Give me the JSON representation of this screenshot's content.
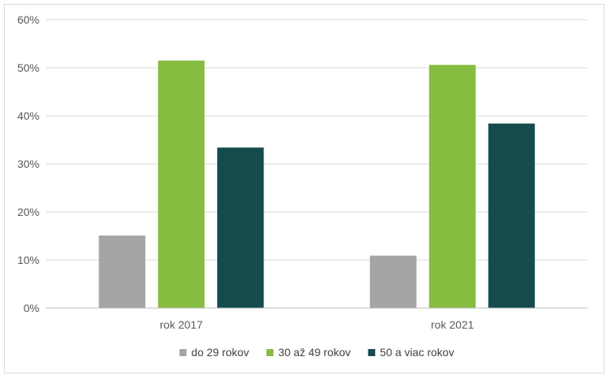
{
  "chart_data": {
    "type": "bar",
    "categories": [
      "rok 2017",
      "rok 2021"
    ],
    "series": [
      {
        "name": "do 29 rokov",
        "values": [
          15.1,
          10.9
        ],
        "color": "#a5a5a5"
      },
      {
        "name": "30 až 49 rokov",
        "values": [
          51.5,
          50.6
        ],
        "color": "#86bc40"
      },
      {
        "name": "50 a viac rokov",
        "values": [
          33.4,
          38.4
        ],
        "color": "#154c4b"
      }
    ],
    "y_ticks": [
      "0%",
      "10%",
      "20%",
      "30%",
      "40%",
      "50%",
      "60%"
    ],
    "ylim": [
      0,
      60
    ],
    "y_unit": "%",
    "grid": true,
    "legend_position": "bottom",
    "title": "",
    "xlabel": "",
    "ylabel": ""
  }
}
